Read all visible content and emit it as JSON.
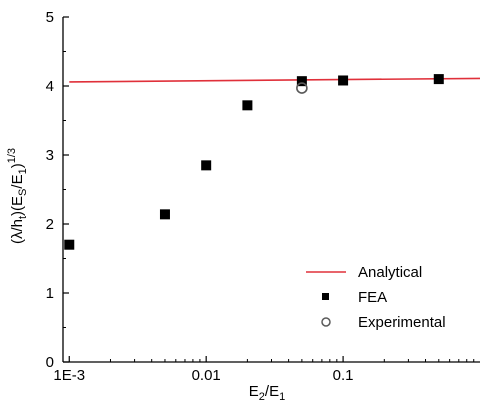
{
  "chart_data": {
    "type": "scatter",
    "title": "",
    "x_scale": "log",
    "xlim": [
      0.0009,
      1.0
    ],
    "ylim": [
      0,
      5
    ],
    "x_ticks": [
      {
        "value": 0.001,
        "label": "1E-3"
      },
      {
        "value": 0.01,
        "label": "0.01"
      },
      {
        "value": 0.1,
        "label": "0.1"
      }
    ],
    "y_ticks": [
      {
        "value": 0,
        "label": "0"
      },
      {
        "value": 1,
        "label": "1"
      },
      {
        "value": 2,
        "label": "2"
      },
      {
        "value": 3,
        "label": "3"
      },
      {
        "value": 4,
        "label": "4"
      },
      {
        "value": 5,
        "label": "5"
      }
    ],
    "xlabel": {
      "base": "E",
      "sub1": "2",
      "mid": "/E",
      "sub2": "1"
    },
    "ylabel": {
      "p1": "(λ/h",
      "s1": "t",
      "p2": ")(E",
      "s2": "S",
      "p3": "/E",
      "s3": "1",
      "p4": ")",
      "sup": "1/3"
    },
    "series": [
      {
        "name": "Analytical",
        "kind": "line",
        "color": "#e0303a",
        "x": [
          0.001,
          1.0
        ],
        "y": [
          4.06,
          4.11
        ]
      },
      {
        "name": "FEA",
        "kind": "square",
        "color": "#000000",
        "x": [
          0.001,
          0.005,
          0.01,
          0.02,
          0.05,
          0.1,
          0.5
        ],
        "y": [
          1.7,
          2.14,
          2.85,
          3.72,
          4.07,
          4.08,
          4.1
        ]
      },
      {
        "name": "Experimental",
        "kind": "circle",
        "color": "#5a5a5a",
        "x": [
          0.05
        ],
        "y": [
          3.97
        ]
      }
    ],
    "legend_position": "lower-right",
    "grid": false
  }
}
